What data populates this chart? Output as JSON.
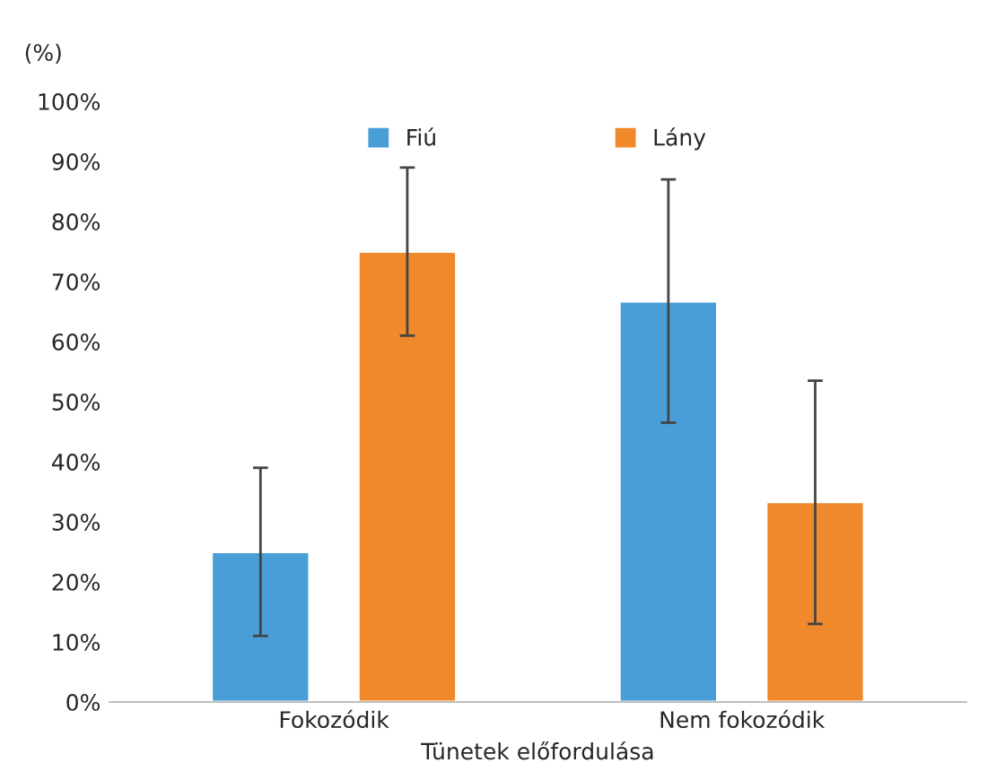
{
  "chart_data": {
    "type": "bar",
    "ylabel": "(%)",
    "xlabel": "Tünetek előfordulása",
    "categories": [
      "Fokozódik",
      "Nem fokozódik"
    ],
    "series": [
      {
        "name": "Fiú",
        "color": "#4a9ed8",
        "values": [
          25,
          66.7
        ],
        "errors": [
          [
            11,
            39
          ],
          [
            46.5,
            87
          ]
        ]
      },
      {
        "name": "Lány",
        "color": "#f0892b",
        "values": [
          75,
          33.3
        ],
        "errors": [
          [
            61,
            89
          ],
          [
            13,
            53.5
          ]
        ]
      }
    ],
    "ylim": [
      0,
      100
    ],
    "yticks": [
      {
        "value": 0,
        "label": "0%"
      },
      {
        "value": 10,
        "label": "10%"
      },
      {
        "value": 20,
        "label": "20%"
      },
      {
        "value": 30,
        "label": "30%"
      },
      {
        "value": 40,
        "label": "40%"
      },
      {
        "value": 50,
        "label": "50%"
      },
      {
        "value": 60,
        "label": "60%"
      },
      {
        "value": 70,
        "label": "70%"
      },
      {
        "value": 80,
        "label": "80%"
      },
      {
        "value": 90,
        "label": "90%"
      },
      {
        "value": 100,
        "label": "100%"
      }
    ],
    "legend": "top",
    "grid": false
  }
}
